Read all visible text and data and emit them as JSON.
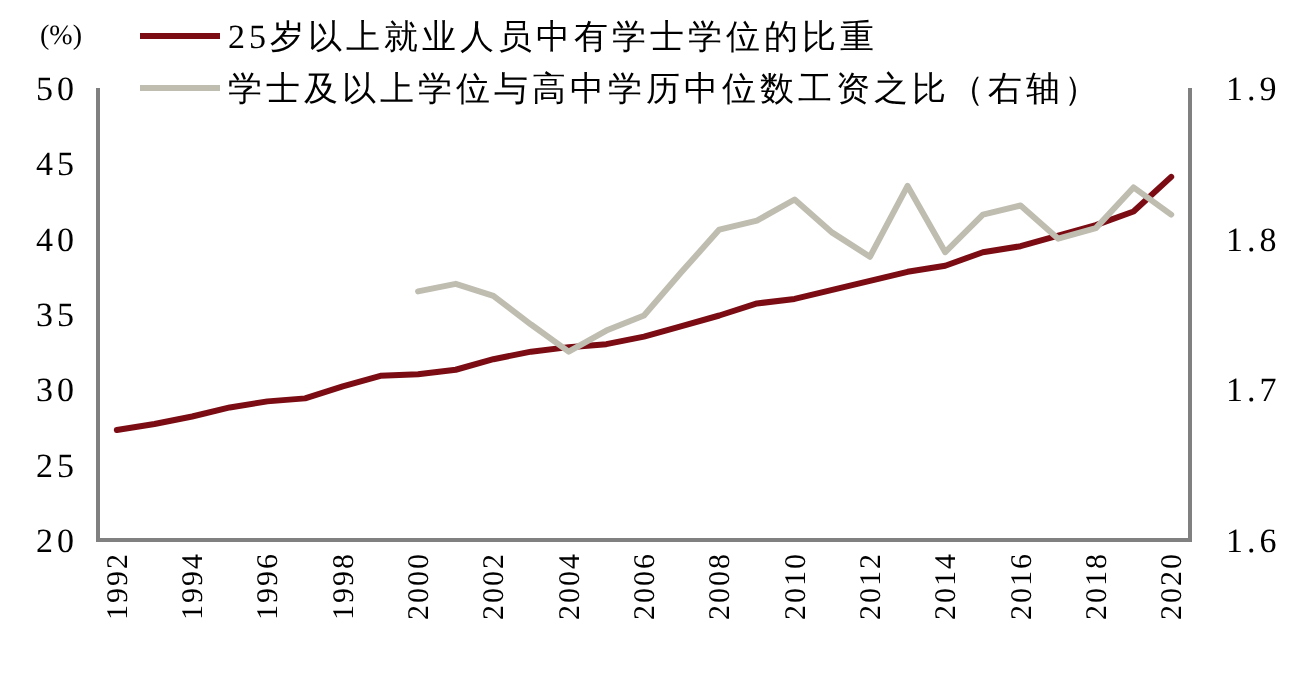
{
  "chart_data": {
    "type": "line",
    "ylabel": "(%)",
    "legend": "top left",
    "x": [
      1992,
      1993,
      1994,
      1995,
      1996,
      1997,
      1998,
      1999,
      2000,
      2001,
      2002,
      2003,
      2004,
      2005,
      2006,
      2007,
      2008,
      2009,
      2010,
      2011,
      2012,
      2013,
      2014,
      2015,
      2016,
      2017,
      2018,
      2019,
      2020
    ],
    "xlim": [
      1991.5,
      2020.5
    ],
    "xticks": [
      1992,
      1994,
      1996,
      1998,
      2000,
      2002,
      2004,
      2006,
      2008,
      2010,
      2012,
      2014,
      2016,
      2018,
      2020
    ],
    "ylim": [
      20,
      50
    ],
    "yticks": [
      20,
      25,
      30,
      35,
      40,
      45,
      50
    ],
    "y2lim": [
      1.6,
      1.9
    ],
    "y2ticks": [
      {
        "value": 1.6,
        "label": "1.6"
      },
      {
        "value": 1.7,
        "label": "1.7"
      },
      {
        "value": 1.8,
        "label": "1.8"
      },
      {
        "value": 1.9,
        "label": "1.9"
      }
    ],
    "series": [
      {
        "name": "25岁以上就业人员中有学士学位的比重",
        "color": "#7b0c14",
        "values": [
          27.3,
          27.7,
          28.2,
          28.8,
          29.2,
          29.4,
          30.2,
          30.9,
          31.0,
          31.3,
          32.0,
          32.5,
          32.8,
          33.0,
          33.5,
          34.2,
          34.9,
          35.7,
          36.0,
          36.6,
          37.2,
          37.8,
          38.2,
          39.1,
          39.5,
          40.2,
          40.9,
          41.8,
          44.1
        ]
      },
      {
        "name": "学士及以上学位与高中学历中位数工资之比（右轴）",
        "color": "#bfbcb0",
        "axis": "y2",
        "values": [
          null,
          null,
          null,
          null,
          null,
          null,
          null,
          null,
          1.765,
          1.77,
          1.762,
          1.743,
          1.725,
          1.739,
          1.749,
          1.778,
          1.806,
          1.812,
          1.826,
          1.804,
          1.788,
          1.835,
          1.791,
          1.816,
          1.822,
          1.8,
          1.807,
          1.834,
          1.816
        ]
      }
    ]
  }
}
